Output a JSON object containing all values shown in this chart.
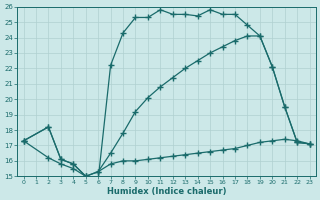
{
  "bg_color": "#cce8e8",
  "line_color": "#1a6b6b",
  "grid_color": "#b0d0d0",
  "xlabel": "Humidex (Indice chaleur)",
  "xlim": [
    -0.5,
    23.5
  ],
  "ylim": [
    15,
    26
  ],
  "xticks": [
    0,
    1,
    2,
    3,
    4,
    5,
    6,
    7,
    8,
    9,
    10,
    11,
    12,
    13,
    14,
    15,
    16,
    17,
    18,
    19,
    20,
    21,
    22,
    23
  ],
  "yticks": [
    15,
    16,
    17,
    18,
    19,
    20,
    21,
    22,
    23,
    24,
    25,
    26
  ],
  "curve1_x": [
    0,
    2,
    3,
    4,
    5,
    6,
    7,
    8,
    9,
    10,
    11,
    12,
    13,
    14,
    15,
    16,
    17,
    18,
    19,
    20,
    21,
    22,
    23
  ],
  "curve1_y": [
    17.3,
    18.2,
    16.1,
    15.8,
    15.0,
    14.8,
    22.2,
    24.3,
    25.3,
    25.3,
    25.8,
    25.5,
    25.5,
    25.4,
    25.8,
    25.5,
    25.5,
    24.8,
    24.1,
    22.1,
    19.5,
    17.2,
    17.1
  ],
  "curve2_x": [
    0,
    2,
    3,
    4,
    5,
    6,
    7,
    8,
    9,
    10,
    11,
    12,
    13,
    14,
    15,
    16,
    17,
    18,
    19,
    20,
    21,
    22,
    23
  ],
  "curve2_y": [
    17.3,
    16.2,
    15.8,
    15.5,
    15.0,
    15.3,
    15.8,
    16.0,
    16.0,
    16.1,
    16.2,
    16.3,
    16.4,
    16.5,
    16.6,
    16.7,
    16.8,
    17.0,
    17.2,
    17.3,
    17.4,
    17.3,
    17.1
  ],
  "curve3_x": [
    0,
    2,
    3,
    4,
    5,
    6,
    7,
    8,
    9,
    10,
    11,
    12,
    13,
    14,
    15,
    16,
    17,
    18,
    19,
    20,
    21,
    22,
    23
  ],
  "curve3_y": [
    17.3,
    18.2,
    16.1,
    15.8,
    15.0,
    15.3,
    16.5,
    17.8,
    19.2,
    20.1,
    20.8,
    21.4,
    22.0,
    22.5,
    23.0,
    23.4,
    23.8,
    24.1,
    24.1,
    22.1,
    19.5,
    17.2,
    17.1
  ]
}
